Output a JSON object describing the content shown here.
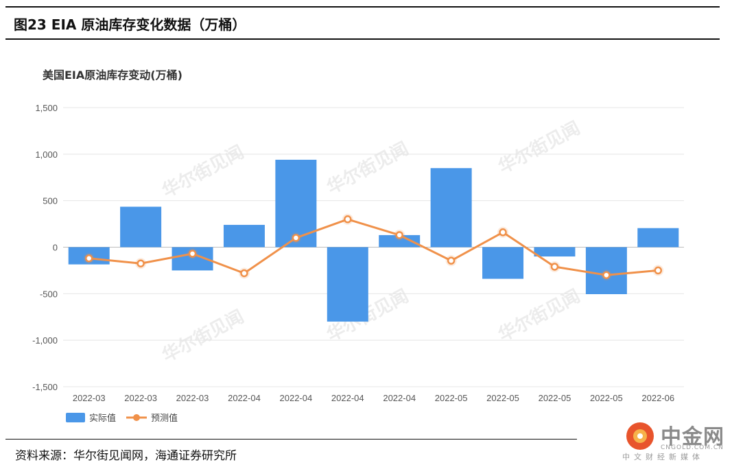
{
  "figure": {
    "title": "图23 EIA 原油库存变化数据（万桶）",
    "source": "资料来源：华尔街见闻网，海通证券研究所"
  },
  "watermark": {
    "text": "华尔街见闻"
  },
  "logo": {
    "name": "中金网",
    "url": "CNGOLD.COM.CN",
    "tagline": "中文财经新媒体"
  },
  "colors": {
    "bar": "#4a97e8",
    "line": "#f0914a",
    "grid": "#e4e4e4",
    "axis_text": "#555555"
  },
  "chart_data": {
    "type": "bar",
    "title": "美国EIA原油库存变动(万桶)",
    "xlabel": "",
    "ylabel": "",
    "ylim": [
      -1500,
      1500
    ],
    "yticks": [
      1500,
      1000,
      500,
      0,
      -500,
      -1000,
      -1500
    ],
    "ytick_labels": [
      "1,500",
      "1,000",
      "500",
      "0",
      "-500",
      "-1,000",
      "-1,500"
    ],
    "categories": [
      "2022-03",
      "2022-03",
      "2022-03",
      "2022-04",
      "2022-04",
      "2022-04",
      "2022-04",
      "2022-05",
      "2022-05",
      "2022-05",
      "2022-05",
      "2022-06"
    ],
    "grid": true,
    "legend_position": "bottom-left",
    "series": [
      {
        "name": "实际值",
        "type": "bar",
        "values": [
          -185,
          435,
          -250,
          240,
          940,
          -800,
          130,
          850,
          -340,
          -100,
          -505,
          205
        ]
      },
      {
        "name": "预测值",
        "type": "line",
        "values": [
          -120,
          -175,
          -70,
          -280,
          100,
          300,
          130,
          -145,
          160,
          -210,
          -300,
          -250
        ]
      }
    ]
  }
}
